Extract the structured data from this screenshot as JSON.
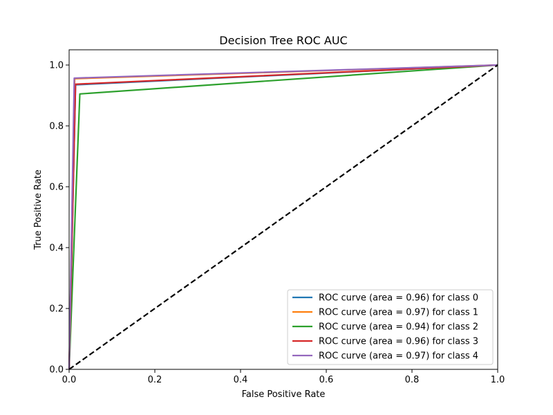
{
  "chart_data": {
    "type": "line",
    "title": "Decision Tree ROC AUC",
    "xlabel": "False Positive Rate",
    "ylabel": "True Positive Rate",
    "xlim": [
      0.0,
      1.0
    ],
    "ylim": [
      0.0,
      1.05
    ],
    "xticks": [
      0.0,
      0.2,
      0.4,
      0.6,
      0.8,
      1.0
    ],
    "yticks": [
      0.0,
      0.2,
      0.4,
      0.6,
      0.8,
      1.0
    ],
    "xtick_labels": [
      "0.0",
      "0.2",
      "0.4",
      "0.6",
      "0.8",
      "1.0"
    ],
    "ytick_labels": [
      "0.0",
      "0.2",
      "0.4",
      "0.6",
      "0.8",
      "1.0"
    ],
    "grid": false,
    "legend_position": "lower-right",
    "series": [
      {
        "name": "ROC curve (area = 0.96) for class 0",
        "color": "#1f77b4",
        "x": [
          0.0,
          0.015,
          1.0
        ],
        "y": [
          0.0,
          0.935,
          1.0
        ]
      },
      {
        "name": "ROC curve (area = 0.97) for class 1",
        "color": "#ff7f0e",
        "x": [
          0.0,
          0.013,
          1.0
        ],
        "y": [
          0.0,
          0.955,
          1.0
        ]
      },
      {
        "name": "ROC curve (area = 0.94) for class 2",
        "color": "#2ca02c",
        "x": [
          0.0,
          0.025,
          1.0
        ],
        "y": [
          0.0,
          0.905,
          1.0
        ]
      },
      {
        "name": "ROC curve (area = 0.96) for class 3",
        "color": "#d62728",
        "x": [
          0.0,
          0.015,
          1.0
        ],
        "y": [
          0.0,
          0.937,
          1.0
        ]
      },
      {
        "name": "ROC curve (area = 0.97) for class 4",
        "color": "#9467bd",
        "x": [
          0.0,
          0.012,
          1.0
        ],
        "y": [
          0.0,
          0.957,
          1.0
        ]
      }
    ],
    "reference_line": {
      "x": [
        0.0,
        1.0
      ],
      "y": [
        0.0,
        1.0
      ],
      "color": "#000000",
      "style": "dashed"
    }
  }
}
